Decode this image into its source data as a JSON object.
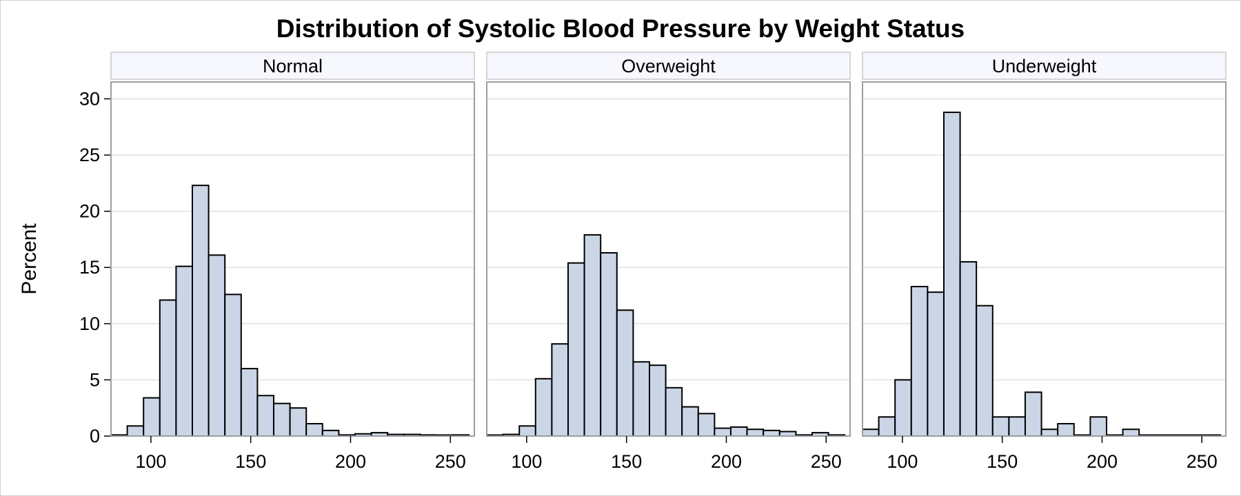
{
  "chart_data": {
    "type": "bar",
    "title": "Distribution of Systolic Blood Pressure by Weight Status",
    "ylabel": "Percent",
    "xlabel": "",
    "ylim": [
      0,
      31.5
    ],
    "xlim": [
      80,
      262
    ],
    "y_ticks": [
      0,
      5,
      10,
      15,
      20,
      25,
      30
    ],
    "x_ticks": [
      100,
      150,
      200,
      250
    ],
    "grid": true,
    "bin_start": 80,
    "bin_width": 8.15,
    "colors": {
      "bar_fill": "#cad5e5",
      "bar_stroke": "#000000",
      "strip_fill": "#f6f8fe",
      "grid": "#e6e6e6",
      "panel_border": "#9a9ea3"
    },
    "panels": [
      {
        "name": "Normal",
        "values": [
          0.1,
          0.9,
          3.4,
          12.1,
          15.1,
          22.3,
          16.1,
          12.6,
          6.0,
          3.6,
          2.9,
          2.5,
          1.1,
          0.5,
          0.1,
          0.2,
          0.3,
          0.15,
          0.15,
          0.1,
          0.0,
          0.1
        ]
      },
      {
        "name": "Overweight",
        "values": [
          0.05,
          0.15,
          0.9,
          5.1,
          8.2,
          15.4,
          17.9,
          16.3,
          11.2,
          6.6,
          6.3,
          4.3,
          2.6,
          2.0,
          0.7,
          0.8,
          0.6,
          0.5,
          0.4,
          0.1,
          0.3,
          0.1
        ]
      },
      {
        "name": "Underweight",
        "values": [
          0.6,
          1.7,
          5.0,
          13.3,
          12.8,
          28.8,
          15.5,
          11.6,
          1.7,
          1.7,
          3.9,
          0.6,
          1.1,
          0.0,
          1.7,
          0.0,
          0.6,
          0.0,
          0.0,
          0.0,
          0.0,
          0.0
        ]
      }
    ]
  }
}
